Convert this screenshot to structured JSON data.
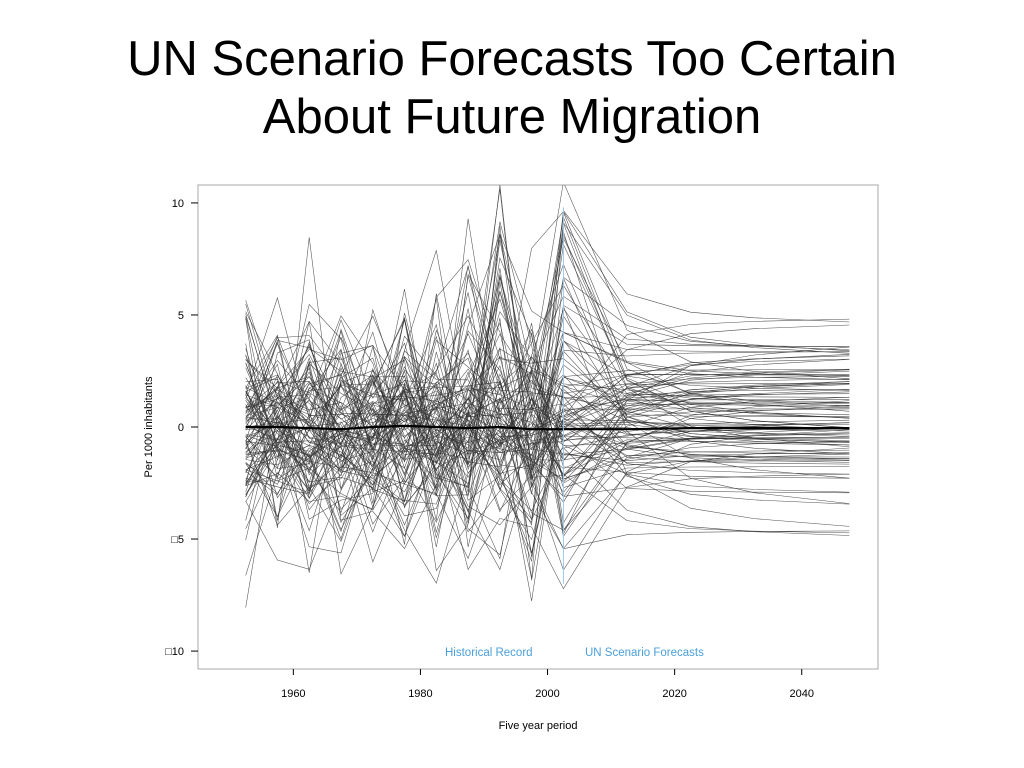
{
  "slide": {
    "title_line1": "UN Scenario Forecasts Too Certain",
    "title_line2": "About Future Migration"
  },
  "chart_data": {
    "type": "line",
    "xlabel": "Five year period",
    "ylabel": "Per 1000 inhabitants",
    "xlim": [
      1945,
      2052
    ],
    "ylim": [
      -10.8,
      10.8
    ],
    "x_ticks": [
      1960,
      1980,
      2000,
      2020,
      2040
    ],
    "x_tick_labels": [
      "1960",
      "1980",
      "2000",
      "2020",
      "2040"
    ],
    "y_ticks": [
      10,
      5,
      0,
      -5,
      -10
    ],
    "y_tick_labels": [
      "10",
      "5",
      "0",
      "□5",
      "□10"
    ],
    "split_year": 2002.5,
    "forecast_end_year": 2047.5,
    "grid": false,
    "annotations": {
      "historical": "Historical Record",
      "forecast": "UN Scenario Forecasts"
    },
    "colors": {
      "series": "#333333",
      "mean": "#000000",
      "annotation": "#4a9fd8",
      "divider": "#9cc8e8"
    },
    "historical_x": [
      1952.5,
      1957.5,
      1962.5,
      1967.5,
      1972.5,
      1977.5,
      1982.5,
      1987.5,
      1992.5,
      1997.5,
      2002.5
    ],
    "forecast_x": [
      2002.5,
      2012.5,
      2022.5,
      2032.5,
      2047.5
    ],
    "series_count": 110,
    "forecast_end_values": [
      4.7,
      3.6,
      3.5,
      3.3,
      3.1,
      2.6,
      2.4,
      2.2,
      2.0,
      1.9,
      1.8,
      1.6,
      1.4,
      1.2,
      1.1,
      1.0,
      0.9,
      0.8,
      0.7,
      0.6,
      0.5,
      0.4,
      0.3,
      0.2,
      0.1,
      0.0,
      0.0,
      -0.1,
      -0.2,
      -0.3,
      -0.4,
      -0.5,
      -0.6,
      -0.7,
      -0.8,
      -0.9,
      -1.0,
      -1.1,
      -1.2,
      -1.3,
      -1.4,
      -1.6,
      -1.8,
      -2.0,
      -2.3,
      -2.8,
      -3.5,
      -4.5,
      -4.8
    ],
    "mean_series": [
      0.0,
      0.0,
      -0.05,
      -0.1,
      0.0,
      0.05,
      0.0,
      -0.05,
      0.0,
      -0.1,
      -0.1,
      -0.1,
      -0.05,
      -0.05,
      -0.05
    ]
  }
}
